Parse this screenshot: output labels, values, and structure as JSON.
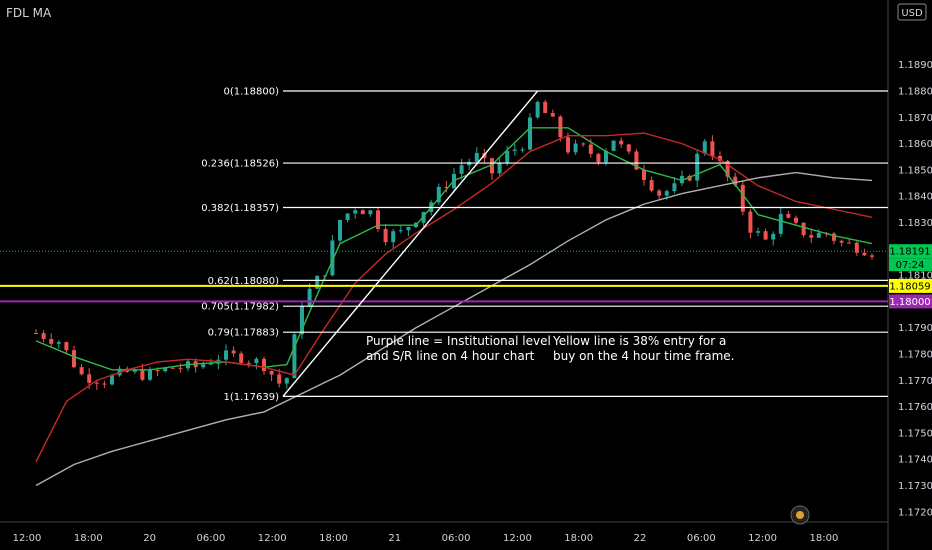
{
  "header": {
    "symbol_label": "FDL MA",
    "currency": "USD"
  },
  "annotations": {
    "purple_note": [
      "Purple line = Institutional level",
      "and S/R line on 4 hour chart"
    ],
    "yellow_note": [
      "Yellow line is 38% entry for a",
      "buy on the 4 hour time frame."
    ]
  },
  "colors": {
    "background": "#000000",
    "up_candle": "#26a69a",
    "down_candle": "#ef5350",
    "fib_line": "#ffffff",
    "trend_line": "#ffffff",
    "yellow_level": "#ffff00",
    "purple_level": "#9c27b0",
    "ma_fast": "#2db84a",
    "ma_mid": "#c62828",
    "ma_slow": "#b0b0b0",
    "current_price": "#00c853"
  },
  "chart_data": {
    "type": "line",
    "title": "",
    "ylim": [
      1.1715,
      1.1907
    ],
    "x_tick_labels": [
      "12:00",
      "18:00",
      "20",
      "06:00",
      "12:00",
      "18:00",
      "21",
      "06:00",
      "12:00",
      "18:00",
      "22",
      "06:00",
      "12:00",
      "18:00"
    ],
    "y_tick_labels": [
      "1.18900",
      "1.18800",
      "1.18700",
      "1.18600",
      "1.18500",
      "1.18400",
      "1.18300",
      "1.18100",
      "1.17900",
      "1.17800",
      "1.17700",
      "1.17600",
      "1.17500",
      "1.17400",
      "1.17300",
      "1.17200"
    ],
    "fib_levels": [
      {
        "label": "0(1.18800)",
        "value": 1.188
      },
      {
        "label": "0.236(1.18526)",
        "value": 1.18526
      },
      {
        "label": "0.382(1.18357)",
        "value": 1.18357
      },
      {
        "label": "0.62(1.18080)",
        "value": 1.1808
      },
      {
        "label": "0.705(1.17982)",
        "value": 1.17982
      },
      {
        "label": "0.79(1.17883)",
        "value": 1.17883
      },
      {
        "label": "1(1.17639)",
        "value": 1.17639
      }
    ],
    "horizontal_levels": [
      {
        "name": "yellow",
        "value": 1.18059,
        "label": "1.18059"
      },
      {
        "name": "purple",
        "value": 1.18,
        "label": "1.18000"
      }
    ],
    "current_price": {
      "value": 1.18191,
      "label": "1.18191",
      "countdown": "07:24"
    },
    "trend_line": {
      "from": [
        32.5,
        1.17639
      ],
      "to": [
        66,
        1.188
      ]
    },
    "price_path": {
      "x": [
        0,
        3,
        6,
        9,
        12,
        15,
        18,
        21,
        24,
        27,
        30,
        32,
        33,
        35,
        38,
        40,
        42,
        44,
        46,
        48,
        50,
        52,
        54,
        56,
        58,
        60,
        62,
        64,
        66,
        68,
        70,
        72,
        74,
        76,
        78,
        80,
        82,
        84,
        86,
        88,
        90,
        92,
        94,
        96,
        98,
        100,
        102,
        104,
        106,
        108,
        110
      ],
      "y": [
        1.1788,
        1.1785,
        1.1772,
        1.177,
        1.1773,
        1.1772,
        1.1775,
        1.1775,
        1.1779,
        1.1779,
        1.1776,
        1.1769,
        1.1771,
        1.18,
        1.1812,
        1.1831,
        1.1836,
        1.1834,
        1.1825,
        1.1826,
        1.1832,
        1.1838,
        1.1845,
        1.1852,
        1.1855,
        1.1849,
        1.1856,
        1.186,
        1.1875,
        1.1868,
        1.1858,
        1.1858,
        1.1855,
        1.1862,
        1.1855,
        1.1848,
        1.1841,
        1.1843,
        1.1848,
        1.1862,
        1.1852,
        1.1842,
        1.1828,
        1.1823,
        1.1832,
        1.1828,
        1.1825,
        1.1826,
        1.1822,
        1.1821,
        1.1819
      ]
    },
    "series": [
      {
        "x": [
          0,
          5,
          10,
          15,
          20,
          25,
          30,
          33,
          36,
          40,
          45,
          50,
          55,
          60,
          65,
          70,
          75,
          80,
          85,
          90,
          95,
          100,
          105,
          110
        ],
        "values": [
          1.1785,
          1.1779,
          1.1774,
          1.1774,
          1.1776,
          1.1777,
          1.1775,
          1.1776,
          1.1796,
          1.1822,
          1.1829,
          1.1829,
          1.1846,
          1.1852,
          1.1866,
          1.1866,
          1.1857,
          1.185,
          1.1846,
          1.1852,
          1.1833,
          1.1829,
          1.1825,
          1.1822
        ]
      },
      {
        "x": [
          0,
          4,
          8,
          12,
          16,
          20,
          25,
          30,
          34,
          38,
          42,
          46,
          50,
          55,
          60,
          65,
          70,
          75,
          80,
          85,
          90,
          95,
          100,
          105,
          110
        ],
        "values": [
          1.1739,
          1.1762,
          1.177,
          1.1774,
          1.1777,
          1.1778,
          1.1777,
          1.1775,
          1.1772,
          1.179,
          1.1807,
          1.1818,
          1.1826,
          1.1835,
          1.1845,
          1.1857,
          1.1863,
          1.1863,
          1.1864,
          1.186,
          1.1854,
          1.1844,
          1.1838,
          1.1835,
          1.1832
        ]
      },
      {
        "x": [
          0,
          5,
          10,
          15,
          20,
          25,
          30,
          35,
          40,
          45,
          50,
          55,
          60,
          65,
          70,
          75,
          80,
          85,
          90,
          95,
          100,
          105,
          110
        ],
        "values": [
          1.173,
          1.1738,
          1.1743,
          1.1747,
          1.1751,
          1.1755,
          1.1758,
          1.1765,
          1.1772,
          1.1781,
          1.179,
          1.1798,
          1.1806,
          1.1814,
          1.1823,
          1.1831,
          1.1837,
          1.1841,
          1.1844,
          1.1847,
          1.1849,
          1.1847,
          1.1846
        ]
      }
    ]
  }
}
